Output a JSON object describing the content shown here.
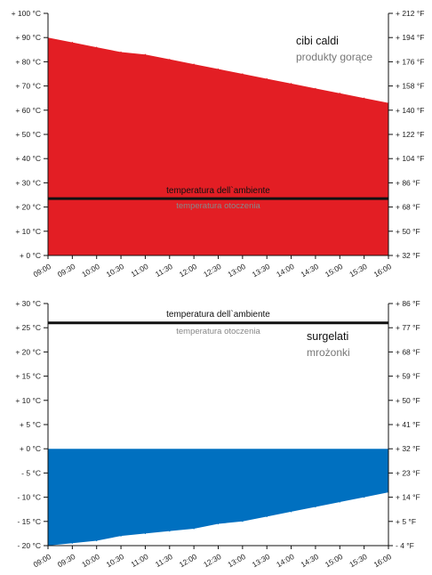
{
  "chart_data": [
    {
      "type": "area",
      "x": [
        "09:00",
        "09:30",
        "10:00",
        "10:30",
        "11:00",
        "11:30",
        "12:00",
        "12:30",
        "13:00",
        "13:30",
        "14:00",
        "14:30",
        "15:00",
        "15:30",
        "16:00"
      ],
      "y": [
        90,
        88,
        86,
        84,
        83,
        81,
        79,
        77,
        75,
        73,
        71,
        69,
        67,
        65,
        63
      ],
      "ylim": [
        0,
        100
      ],
      "left_ticks": [
        "+ 0 °C",
        "+ 10 °C",
        "+ 20 °C",
        "+ 30 °C",
        "+ 40 °C",
        "+ 50 °C",
        "+ 60 °C",
        "+ 70 °C",
        "+ 80 °C",
        "+ 90 °C",
        "+ 100 °C"
      ],
      "right_ticks": [
        "+ 32 °F",
        "+ 50 °F",
        "+ 68 °F",
        "+ 86 °F",
        "+ 104 °F",
        "+ 122 °F",
        "+ 140 °F",
        "+ 158 °F",
        "+ 176 °F",
        "+ 194 °F",
        "+ 212 °F"
      ],
      "fill_color": "#e31e24",
      "ambient_value": 23.5,
      "ambient_label": "temperatura dell`ambiente",
      "ambient_sublabel": "temperatura otoczenia",
      "title": "cibi caldi",
      "subtitle": "produkty gorące"
    },
    {
      "type": "area",
      "x": [
        "09:00",
        "09:30",
        "10:00",
        "10:30",
        "11:00",
        "11:30",
        "12:00",
        "12:30",
        "13:00",
        "13:30",
        "14:00",
        "14:30",
        "15:00",
        "15:30",
        "16:00"
      ],
      "y": [
        -20,
        -19.5,
        -19,
        -18,
        -17.5,
        -17,
        -16.5,
        -15.5,
        -15,
        -14,
        -13,
        -12,
        -11,
        -10,
        -9
      ],
      "ylim": [
        -20,
        30
      ],
      "left_ticks": [
        "- 20 °C",
        "- 15 °C",
        "- 10 °C",
        "- 5 °C",
        "+ 0 °C",
        "+ 5 °C",
        "+ 10 °C",
        "+ 15 °C",
        "+ 20 °C",
        "+ 25 °C",
        "+ 30 °C"
      ],
      "right_ticks": [
        "- 4 °F",
        "+ 5 °F",
        "+ 14 °F",
        "+ 23 °F",
        "+ 32 °F",
        "+ 41 °F",
        "+ 50 °F",
        "+ 59 °F",
        "+ 68 °F",
        "+ 77 °F",
        "+ 86 °F"
      ],
      "fill_color": "#0070c0",
      "ambient_value": 26,
      "ambient_label": "temperatura dell`ambiente",
      "ambient_sublabel": "temperatura otoczenia",
      "title": "surgelati",
      "subtitle": "mrożonki"
    }
  ]
}
